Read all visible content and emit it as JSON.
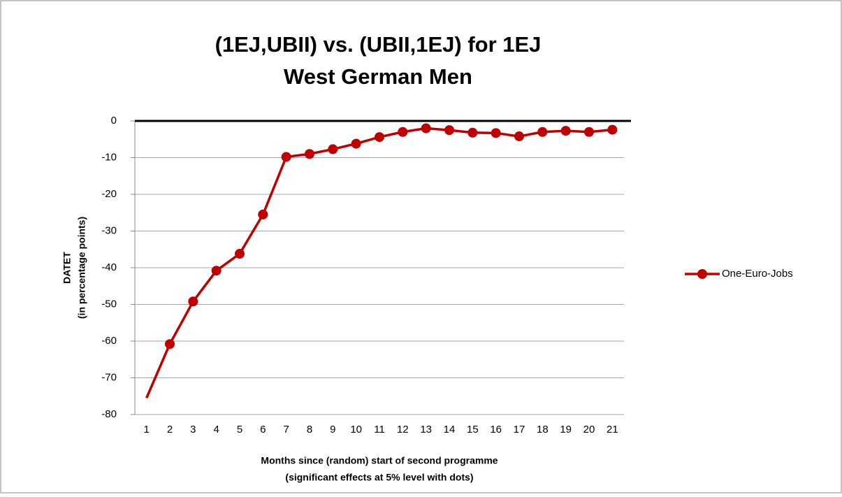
{
  "chart_data": {
    "type": "line",
    "title": [
      "(1EJ,UBII) vs. (UBII,1EJ) for 1EJ",
      "West German Men"
    ],
    "y_label": [
      "DATET",
      "(in percentage points)"
    ],
    "x_label": [
      "Months since (random) start of second programme",
      "(significant  effects at 5% level with dots)"
    ],
    "categories": [
      1,
      2,
      3,
      4,
      5,
      6,
      7,
      8,
      9,
      10,
      11,
      12,
      13,
      14,
      15,
      16,
      17,
      18,
      19,
      20,
      21
    ],
    "series": [
      {
        "name": "One-Euro-Jobs",
        "color": "#c00000",
        "values": [
          -75.5,
          -60.8,
          -49.2,
          -40.8,
          -36.2,
          -25.5,
          -9.8,
          -9,
          -7.7,
          -6.2,
          -4.4,
          -3,
          -2,
          -2.5,
          -3.2,
          -3.3,
          -4.2,
          -3,
          -2.7,
          -3,
          -2.4
        ],
        "markers": [
          false,
          true,
          true,
          true,
          true,
          true,
          true,
          true,
          true,
          true,
          true,
          true,
          true,
          true,
          true,
          true,
          true,
          true,
          true,
          true,
          true
        ]
      }
    ],
    "ylim": [
      -80,
      0
    ],
    "yticks": [
      -80,
      -70,
      -60,
      -50,
      -40,
      -30,
      -20,
      -10,
      0
    ],
    "grid": true,
    "legend": "right"
  }
}
